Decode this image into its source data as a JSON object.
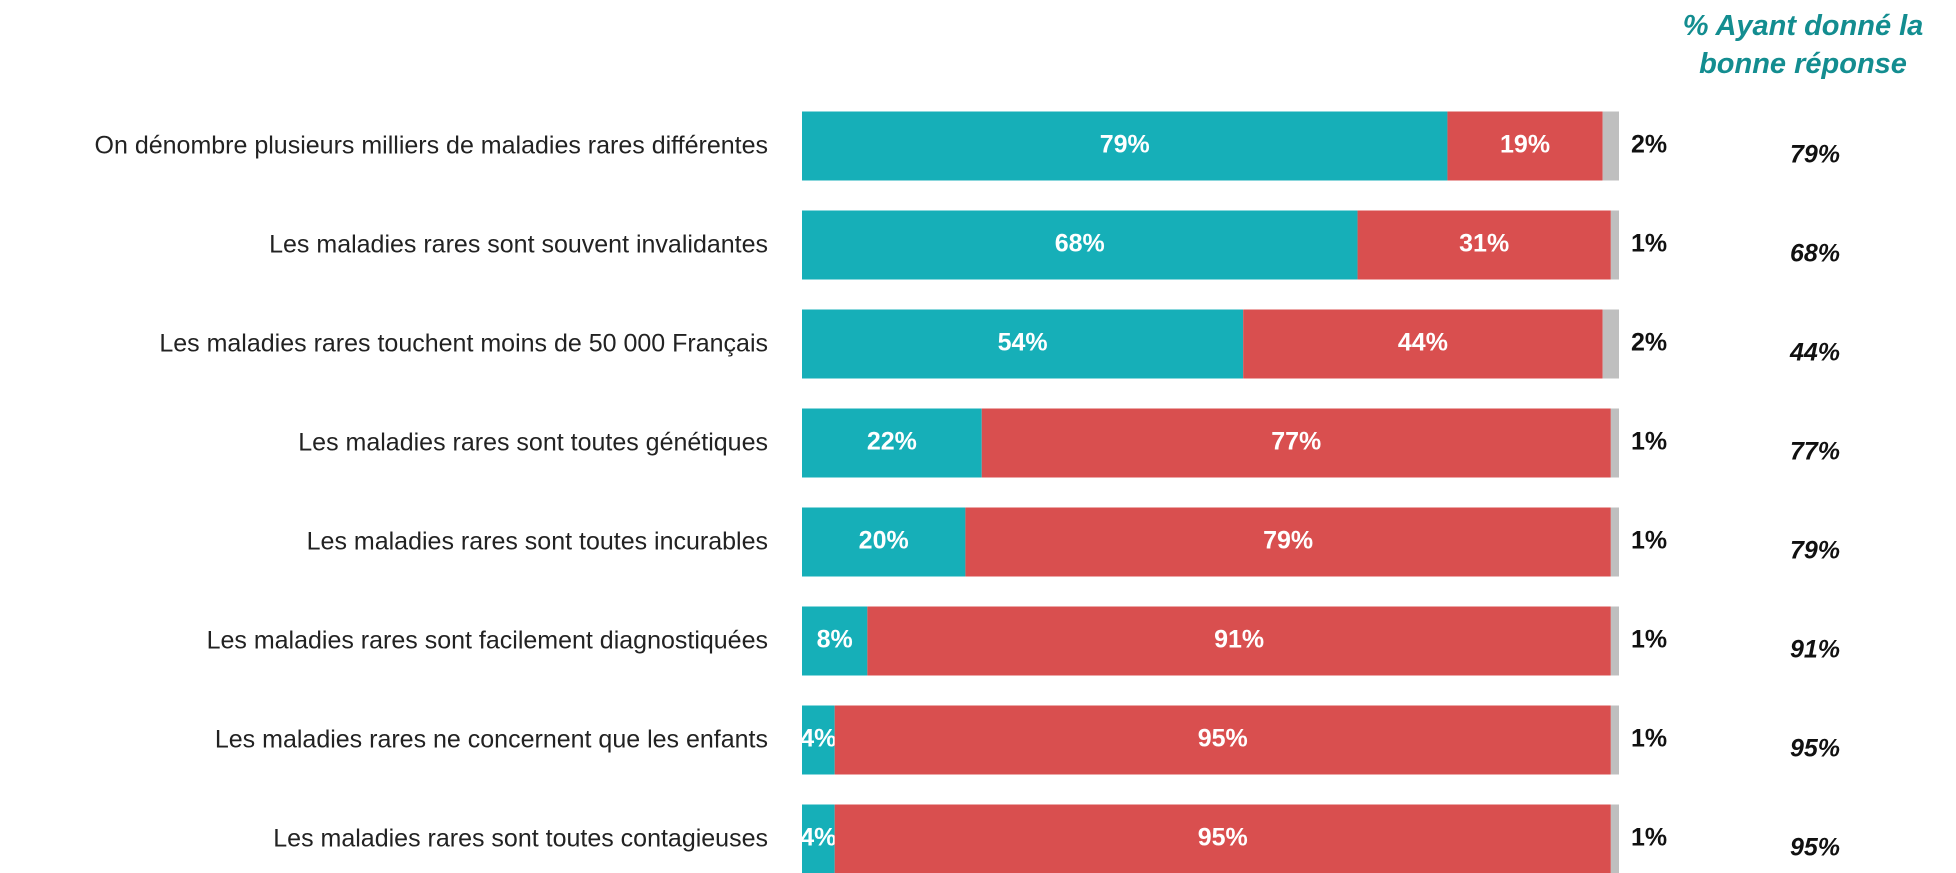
{
  "chart_data": {
    "type": "stacked-barh",
    "categories": [
      "On dénombre plusieurs milliers de maladies rares différentes",
      "Les maladies rares sont souvent invalidantes",
      "Les maladies rares touchent moins de 50 000 Français",
      "Les maladies rares sont toutes génétiques",
      "Les maladies rares sont toutes incurables",
      "Les maladies rares sont facilement diagnostiquées",
      "Les maladies rares ne concernent que les enfants",
      "Les maladies rares sont toutes contagieuses"
    ],
    "series": [
      {
        "color": "#16afb8",
        "values": [
          79,
          68,
          54,
          22,
          20,
          8,
          4,
          4
        ],
        "value_labels": [
          "79%",
          "68%",
          "54%",
          "22%",
          "20%",
          "8%",
          "4%",
          "4%"
        ]
      },
      {
        "color": "#d94f4f",
        "values": [
          19,
          31,
          44,
          77,
          79,
          91,
          95,
          95
        ],
        "value_labels": [
          "19%",
          "31%",
          "44%",
          "77%",
          "79%",
          "91%",
          "95%",
          "95%"
        ]
      },
      {
        "color": "#bfbfbf",
        "values": [
          2,
          1,
          2,
          1,
          1,
          1,
          1,
          1
        ],
        "value_labels": [
          "2%",
          "1%",
          "2%",
          "1%",
          "1%",
          "1%",
          "1%",
          "1%"
        ]
      }
    ],
    "xlim": [
      0,
      100
    ],
    "side_column": {
      "title": "% Ayant donné la bonne réponse",
      "color": "#138d90",
      "values": [
        79,
        68,
        44,
        77,
        79,
        91,
        95,
        95
      ],
      "value_labels": [
        "79%",
        "68%",
        "44%",
        "77%",
        "79%",
        "91%",
        "95%",
        "95%"
      ]
    }
  }
}
